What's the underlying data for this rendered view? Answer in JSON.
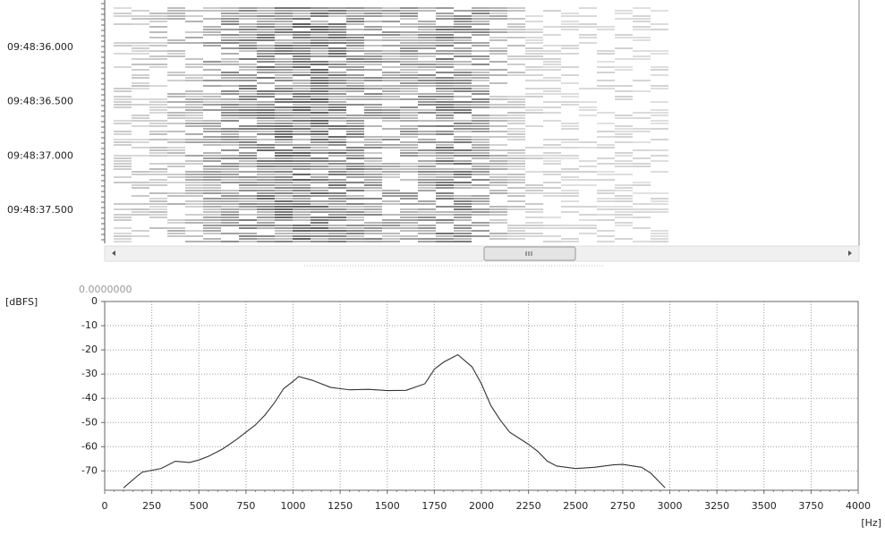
{
  "spectrogram": {
    "time_labels": [
      "09:48:36.000",
      "09:48:36.500",
      "09:48:37.000",
      "09:48:37.500"
    ]
  },
  "chart_data": {
    "type": "line",
    "annotation": "0.0000000",
    "y_label": "[dBFS]",
    "x_label": "[Hz]",
    "x": [
      100,
      175,
      200,
      300,
      375,
      450,
      500,
      550,
      625,
      700,
      800,
      850,
      900,
      950,
      1000,
      1030,
      1100,
      1200,
      1300,
      1400,
      1500,
      1600,
      1700,
      1750,
      1800,
      1875,
      1950,
      2000,
      2050,
      2100,
      2150,
      2250,
      2300,
      2350,
      2400,
      2500,
      2600,
      2700,
      2750,
      2850,
      2900,
      2950,
      2975
    ],
    "values": [
      -77,
      -72,
      -70.5,
      -69,
      -66,
      -66.5,
      -65.5,
      -64,
      -61,
      -57,
      -51,
      -47,
      -42,
      -36,
      -33,
      -31,
      -32.5,
      -35.5,
      -36.5,
      -36.3,
      -36.8,
      -36.7,
      -34,
      -28,
      -25,
      -22,
      -27,
      -34,
      -43,
      -49,
      -54,
      -59,
      -62,
      -66,
      -68,
      -69,
      -68.5,
      -67.5,
      -67.3,
      -68.5,
      -71,
      -75,
      -77
    ],
    "color": "#333333",
    "xlim": [
      0,
      4000
    ],
    "xticks": [
      0,
      250,
      500,
      750,
      1000,
      1250,
      1500,
      1750,
      2000,
      2250,
      2500,
      2750,
      3000,
      3250,
      3500,
      3750,
      4000
    ],
    "ylim": [
      -78,
      0
    ],
    "yticks": [
      0,
      -10,
      -20,
      -30,
      -40,
      -50,
      -60,
      -70
    ],
    "grid": true
  }
}
